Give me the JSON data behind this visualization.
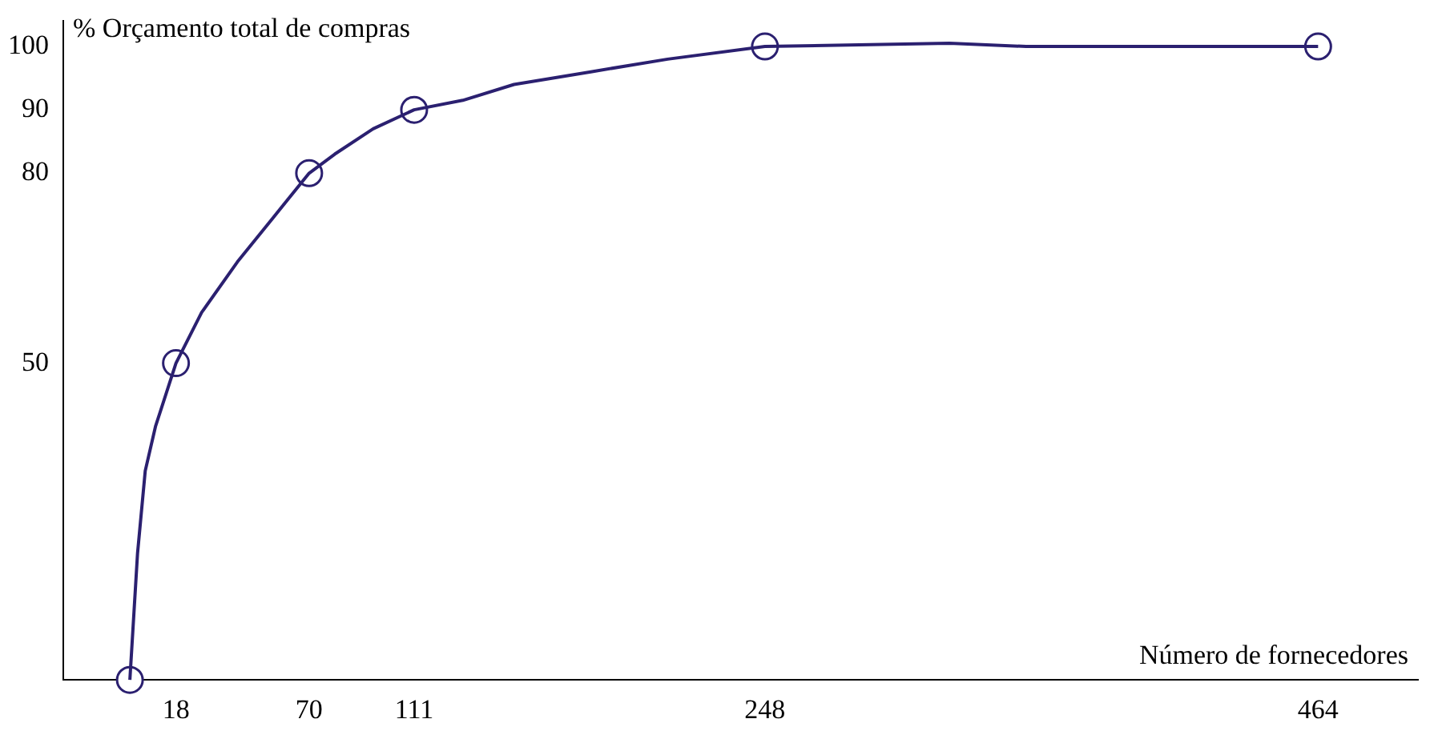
{
  "chart_data": {
    "type": "line",
    "xlabel": "Número de fornecedores",
    "ylabel": "% Orçamento total de compras",
    "xlim": [
      -26,
      503
    ],
    "xticks": [
      18,
      70,
      111,
      248,
      464
    ],
    "ylim": [
      0,
      104
    ],
    "yticks": [
      50,
      80,
      90,
      100
    ],
    "grid": false,
    "legend": false,
    "series": [
      {
        "marker": "none",
        "color": "#2b2070",
        "x": [
          0,
          3,
          6,
          10,
          18,
          28,
          42,
          56,
          70,
          80,
          95,
          111,
          130,
          150,
          180,
          210,
          248,
          320,
          350,
          420,
          464
        ],
        "values": [
          0,
          20,
          33,
          40,
          50,
          58,
          66,
          73,
          80,
          83,
          87,
          90,
          91.5,
          94,
          96,
          98,
          100,
          100.5,
          100,
          100,
          100
        ]
      },
      {
        "type": "scatter",
        "marker": "circle",
        "color": "#2b2070",
        "x": [
          0,
          18,
          70,
          111,
          248,
          464
        ],
        "values": [
          0,
          50,
          80,
          90,
          100,
          100
        ]
      }
    ]
  }
}
